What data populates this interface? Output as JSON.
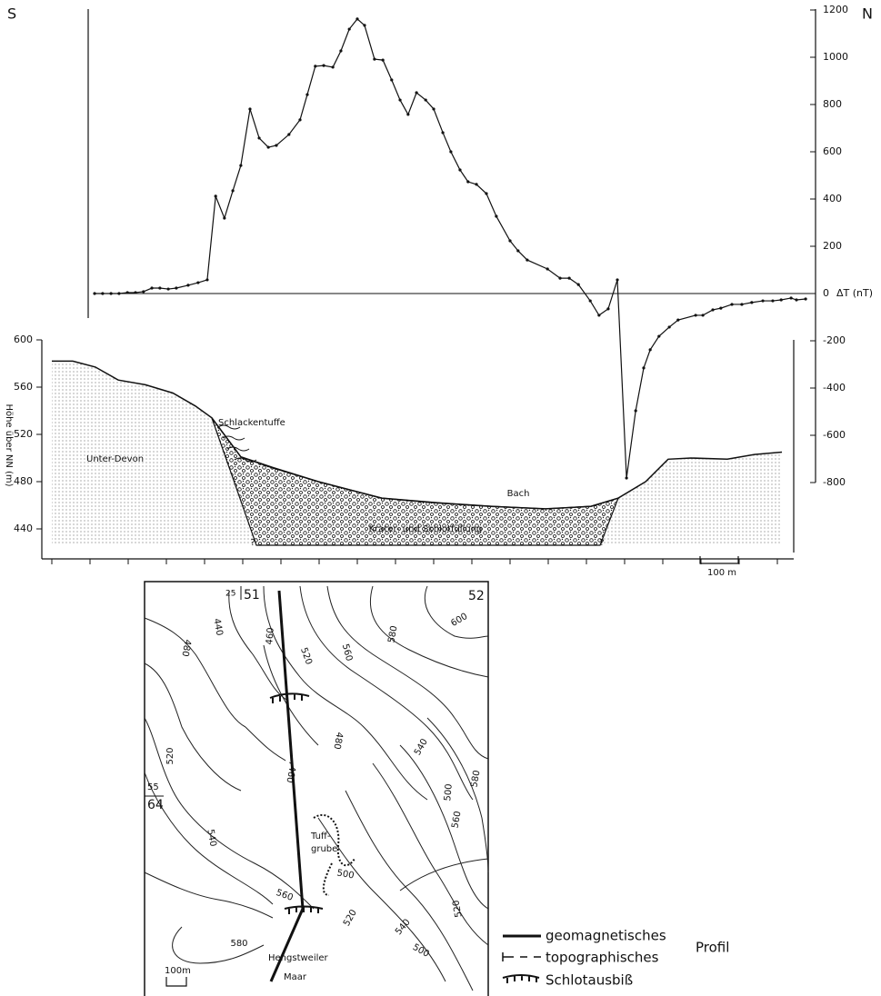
{
  "chart_data": [
    {
      "type": "line",
      "left_label": "S",
      "right_label": "N",
      "y_label": "ΔT (nT)",
      "color": "#111111",
      "x": [
        112,
        133,
        155,
        176,
        198,
        219,
        240,
        262,
        283,
        305,
        326,
        357,
        383,
        407,
        429,
        452,
        474,
        495,
        519,
        543,
        567,
        588,
        621,
        650,
        669,
        690,
        712,
        736,
        757,
        779,
        800,
        819,
        845,
        867,
        890,
        912,
        933,
        955,
        979,
        1000,
        1024,
        1045,
        1069,
        1090,
        1112,
        1138,
        1164,
        1200,
        1221,
        1245,
        1298,
        1331,
        1355,
        1379,
        1410,
        1433,
        1457,
        1481,
        1505,
        1529,
        1550,
        1567,
        1590,
        1617,
        1640,
        1686,
        1705,
        1731,
        1752,
        1781,
        1807,
        1833,
        1862,
        1888,
        1910,
        1936,
        1950,
        1974
      ],
      "values": [
        0,
        0,
        0,
        0,
        4,
        4,
        8,
        23,
        23,
        19,
        23,
        35,
        46,
        58,
        412,
        319,
        435,
        542,
        781,
        658,
        619,
        627,
        673,
        735,
        842,
        962,
        965,
        958,
        1027,
        1119,
        1162,
        1135,
        992,
        988,
        904,
        819,
        758,
        850,
        819,
        781,
        681,
        600,
        523,
        473,
        462,
        423,
        327,
        223,
        181,
        142,
        104,
        65,
        65,
        38,
        -31,
        -92,
        -65,
        58,
        -781,
        -496,
        -315,
        -238,
        -181,
        -142,
        -112,
        -92,
        -92,
        -69,
        -62,
        -46,
        -46,
        -38,
        -31,
        -31,
        -27,
        -19,
        -27,
        -23
      ],
      "xlim": [
        0,
        2000
      ],
      "ylim": [
        -800,
        1200
      ],
      "yticks": [
        -800,
        -600,
        -400,
        -200,
        0,
        200,
        400,
        600,
        800,
        1000,
        1200
      ]
    },
    {
      "type": "area",
      "y_label": "Höhe über NN (m)",
      "color": "#111111",
      "x": [
        0,
        55,
        114,
        174,
        245,
        317,
        376,
        419,
        495,
        579,
        698,
        864,
        1007,
        1150,
        1293,
        1412,
        1483,
        1555,
        1614,
        1674,
        1769,
        1840,
        1912
      ],
      "values": [
        582,
        582,
        577,
        566,
        562,
        555,
        544,
        534,
        501,
        492,
        480,
        466,
        462,
        459,
        457,
        459,
        466,
        480,
        499,
        500,
        499,
        503,
        505
      ],
      "xlim": [
        0,
        2000
      ],
      "ylim": [
        420,
        600
      ],
      "yticks": [
        440,
        480,
        520,
        560,
        600
      ],
      "xticks": [
        0,
        100,
        200,
        300,
        400,
        500,
        600,
        700,
        800,
        900,
        1000,
        1100,
        1200,
        1300,
        1400,
        1500,
        1600,
        1700,
        1800,
        1900
      ],
      "annotations": [
        "Schlackentuffe",
        "Unter-Devon",
        "Bach",
        "Krater- und Schlotfüllung",
        "?",
        "?"
      ],
      "scale_label": "100 m"
    }
  ],
  "map": {
    "grid_labels": [
      "25",
      "51",
      "52",
      "55",
      "64"
    ],
    "contour_labels": [
      "440",
      "460",
      "480",
      "520",
      "560",
      "580",
      "600",
      "480",
      "460",
      "540",
      "580",
      "500",
      "560",
      "520",
      "540",
      "500",
      "560",
      "520",
      "580",
      "540",
      "500",
      "520"
    ],
    "places": [
      "Tuff-",
      "grube",
      "Hengstweiler",
      "Maar"
    ],
    "scale": "100m",
    "legend": {
      "items": [
        "geomagnetisches",
        "topographisches",
        "Schlotausbiß"
      ],
      "group": "Profil"
    }
  }
}
